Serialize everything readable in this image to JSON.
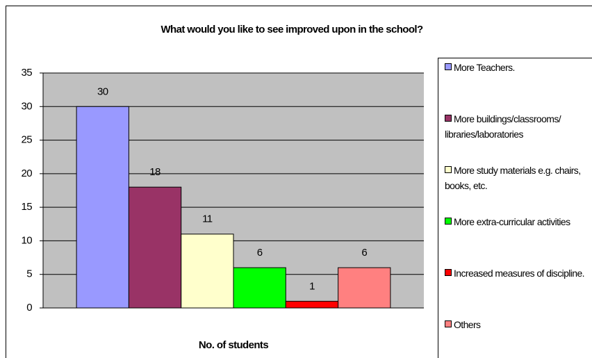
{
  "chart_data": {
    "type": "bar",
    "title": "What would you like to see improved upon in the school?",
    "x_label": "No. of students",
    "categories": [
      null
    ],
    "series": [
      {
        "name": "More Teachers.",
        "color": "#9999ff",
        "values": [
          30
        ]
      },
      {
        "name": "More buildings/classrooms/ libraries/laboratories",
        "color": "#993366",
        "values": [
          18
        ]
      },
      {
        "name": "More study materials e.g. chairs, books, etc.",
        "color": "#ffffcc",
        "values": [
          11
        ]
      },
      {
        "name": "More extra-curricular activities",
        "color": "#00ff00",
        "values": [
          6
        ]
      },
      {
        "name": "Increased measures of discipline.",
        "color": "#ff0000",
        "values": [
          1
        ]
      },
      {
        "name": "Others",
        "color": "#ff8080",
        "values": [
          6
        ]
      }
    ],
    "ylim": [
      0,
      35
    ],
    "yticks": [
      0,
      5,
      10,
      15,
      20,
      25,
      30,
      35
    ],
    "grid": true,
    "legend": "right"
  }
}
